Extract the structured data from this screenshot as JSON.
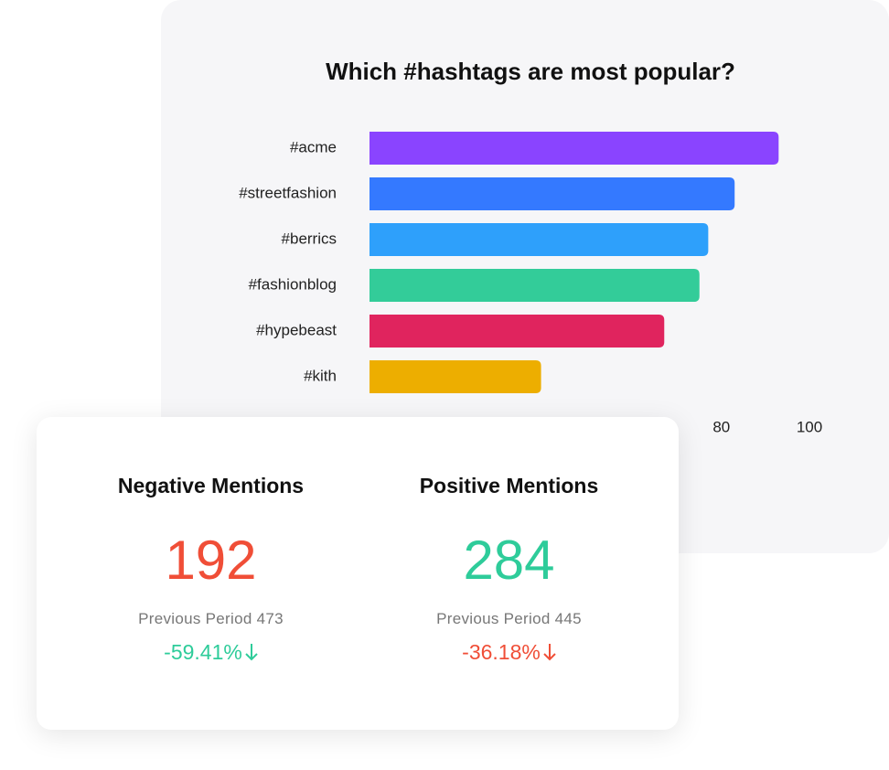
{
  "chart_data": {
    "type": "hbar",
    "title": "Which #hashtags are most popular?",
    "categories": [
      "#acme",
      "#streetfashion",
      "#berrics",
      "#fashionblog",
      "#hypebeast",
      "#kith"
    ],
    "values": [
      93,
      83,
      77,
      75,
      67,
      39
    ],
    "colors": [
      "#8a44ff",
      "#3479ff",
      "#2ea0fb",
      "#33cc99",
      "#e0245e",
      "#edae00"
    ],
    "xlim": [
      0,
      100
    ],
    "xticks": [
      80,
      100
    ]
  },
  "mentions_card": [
    {
      "title": "Negative Mentions",
      "value": 192,
      "value_color": "#f04e37",
      "previous_label": "Previous Period",
      "previous_value": 473,
      "change": "-59.41%",
      "change_color": "#2ecc9a"
    },
    {
      "title": "Positive Mentions",
      "value": 284,
      "value_color": "#2ecc9a",
      "previous_label": "Previous Period",
      "previous_value": 445,
      "change": "-36.18%",
      "change_color": "#f04e37"
    }
  ]
}
